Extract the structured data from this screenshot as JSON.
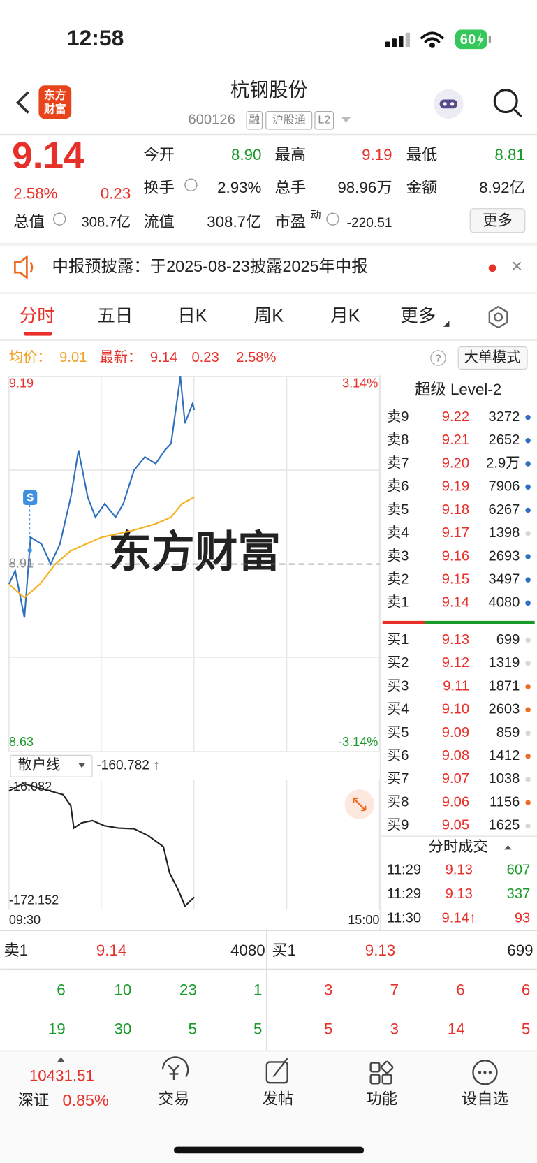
{
  "status_bar": {
    "time": "12:58",
    "battery": "60"
  },
  "header": {
    "logo_top": "东方",
    "logo_bottom": "财富",
    "title": "杭钢股份",
    "code": "600126",
    "tags": [
      "融",
      "沪股通",
      "L2"
    ]
  },
  "quote": {
    "price": "9.14",
    "change_pct": "2.58%",
    "change": "0.23",
    "fields": [
      {
        "label": "今开",
        "value": "8.90"
      },
      {
        "label": "最高",
        "value": "9.19"
      },
      {
        "label": "最低",
        "value": "8.81"
      },
      {
        "label": "换手",
        "value": "2.93%"
      },
      {
        "label": "总手",
        "value": "98.96万"
      },
      {
        "label": "金额",
        "value": "8.92亿"
      },
      {
        "label": "总值",
        "value": "308.7亿"
      },
      {
        "label": "流值",
        "value": "308.7亿"
      },
      {
        "label": "市盈",
        "sup": "动",
        "value": "-220.51"
      }
    ],
    "more": "更多"
  },
  "notice": {
    "text": "中报预披露：于2025-08-23披露2025年中报",
    "close": "×"
  },
  "tabs": [
    "分时",
    "五日",
    "日K",
    "周K",
    "月K",
    "更多"
  ],
  "summary": {
    "avg_label": "均价：",
    "avg": "9.01",
    "latest_label": "最新：",
    "latest": "9.14",
    "change": "0.23",
    "pct": "2.58%",
    "help": "?",
    "mode": "大单模式"
  },
  "intraday": {
    "type": "line",
    "watermark": "东方财富",
    "marker": "S",
    "xlim": [
      "09:30",
      "15:00"
    ],
    "xticks": [
      "09:30",
      "15:00"
    ],
    "ylim": [
      8.63,
      9.19
    ],
    "yticks": [
      9.19,
      8.91,
      8.63
    ],
    "y2lim": [
      -3.14,
      3.14
    ],
    "y2ticks": [
      {
        "value": 3.14,
        "label": "3.14%"
      },
      {
        "value": -3.14,
        "label": "-3.14%"
      }
    ],
    "series": [
      {
        "color": "#2f6fbf",
        "x": [
          "09:30",
          "09:34",
          "09:40",
          "09:44",
          "09:51",
          "09:57",
          "10:03",
          "10:10",
          "10:15",
          "10:21",
          "10:26",
          "10:32",
          "10:39",
          "10:44",
          "10:51",
          "10:58",
          "11:05",
          "11:11",
          "11:15",
          "11:21",
          "11:24",
          "11:29",
          "11:30"
        ],
        "values": [
          8.88,
          8.9,
          8.83,
          8.95,
          8.94,
          8.91,
          8.94,
          9.01,
          9.08,
          9.01,
          8.98,
          9.0,
          8.98,
          9.0,
          9.05,
          9.07,
          9.06,
          9.08,
          9.09,
          9.19,
          9.12,
          9.15,
          9.14
        ]
      },
      {
        "color": "#f5b120",
        "x": [
          "09:30",
          "09:35",
          "09:40",
          "09:50",
          "10:00",
          "10:10",
          "10:30",
          "10:50",
          "11:05",
          "11:15",
          "11:22",
          "11:30"
        ],
        "values": [
          8.88,
          8.87,
          8.86,
          8.88,
          8.91,
          8.93,
          8.95,
          8.96,
          8.97,
          8.98,
          9.0,
          9.01
        ]
      }
    ]
  },
  "indicator": {
    "type": "line",
    "name": "散户线",
    "value": "-160.782 ↑",
    "ylim": [
      -172.152,
      -16.082
    ],
    "yticks": [
      -16.082,
      -172.152
    ],
    "series": [
      {
        "color": "#222222",
        "x": [
          "09:30",
          "09:39",
          "09:53",
          "10:05",
          "10:10",
          "10:12",
          "10:17",
          "10:24",
          "10:32",
          "10:41",
          "10:51",
          "11:00",
          "11:10",
          "11:14",
          "11:20",
          "11:24",
          "11:30"
        ],
        "values": [
          -25.5,
          -16.082,
          -23.6,
          -30.3,
          -44.5,
          -72.8,
          -66.2,
          -63.4,
          -70.0,
          -72.8,
          -73.8,
          -82.3,
          -96.5,
          -129.6,
          -153.2,
          -172.152,
          -160.782
        ]
      }
    ]
  },
  "order_book": {
    "title": "超级 Level-2",
    "asks": [
      {
        "label": "卖9",
        "price": "9.22",
        "volume": "3272",
        "dot": "#2f6fbf"
      },
      {
        "label": "卖8",
        "price": "9.21",
        "volume": "2652",
        "dot": "#2f6fbf"
      },
      {
        "label": "卖7",
        "price": "9.20",
        "volume": "2.9万",
        "dot": "#2f6fbf"
      },
      {
        "label": "卖6",
        "price": "9.19",
        "volume": "7906",
        "dot": "#2f6fbf"
      },
      {
        "label": "卖5",
        "price": "9.18",
        "volume": "6267",
        "dot": "#2f6fbf"
      },
      {
        "label": "卖4",
        "price": "9.17",
        "volume": "1398",
        "dot": "#d8d8d8"
      },
      {
        "label": "卖3",
        "price": "9.16",
        "volume": "2693",
        "dot": "#2f6fbf"
      },
      {
        "label": "卖2",
        "price": "9.15",
        "volume": "3497",
        "dot": "#2f6fbf"
      },
      {
        "label": "卖1",
        "price": "9.14",
        "volume": "4080",
        "dot": "#2f6fbf"
      }
    ],
    "bids": [
      {
        "label": "买1",
        "price": "9.13",
        "volume": "699",
        "dot": "#d8d8d8"
      },
      {
        "label": "买2",
        "price": "9.12",
        "volume": "1319",
        "dot": "#d8d8d8"
      },
      {
        "label": "买3",
        "price": "9.11",
        "volume": "1871",
        "dot": "#ee6a1f"
      },
      {
        "label": "买4",
        "price": "9.10",
        "volume": "2603",
        "dot": "#ee6a1f"
      },
      {
        "label": "买5",
        "price": "9.09",
        "volume": "859",
        "dot": "#d8d8d8"
      },
      {
        "label": "买6",
        "price": "9.08",
        "volume": "1412",
        "dot": "#ee6a1f"
      },
      {
        "label": "买7",
        "price": "9.07",
        "volume": "1038",
        "dot": "#d8d8d8"
      },
      {
        "label": "买8",
        "price": "9.06",
        "volume": "1156",
        "dot": "#ee6a1f"
      },
      {
        "label": "买9",
        "price": "9.05",
        "volume": "1625",
        "dot": "#d8d8d8"
      }
    ]
  },
  "trades": {
    "title": "分时成交",
    "rows": [
      {
        "time": "11:29",
        "price": "9.13",
        "volume": "607",
        "color": "#1a9a2a"
      },
      {
        "time": "11:29",
        "price": "9.13",
        "volume": "337",
        "color": "#1a9a2a"
      },
      {
        "time": "11:30",
        "price": "9.14↑",
        "volume": "93",
        "color": "#e8302a"
      }
    ]
  },
  "bottom_book": {
    "sell": {
      "label": "卖1",
      "price": "9.14",
      "volume": "4080"
    },
    "buy": {
      "label": "买1",
      "price": "9.13",
      "volume": "699"
    },
    "sell_queue": [
      6,
      10,
      23,
      1,
      19,
      30,
      5,
      5
    ],
    "buy_queue": [
      3,
      7,
      6,
      6,
      5,
      3,
      14,
      5
    ]
  },
  "index": {
    "value": "10431.51",
    "name": "深证",
    "pct": "0.85%"
  },
  "nav": [
    "交易",
    "发帖",
    "功能",
    "设自选"
  ]
}
